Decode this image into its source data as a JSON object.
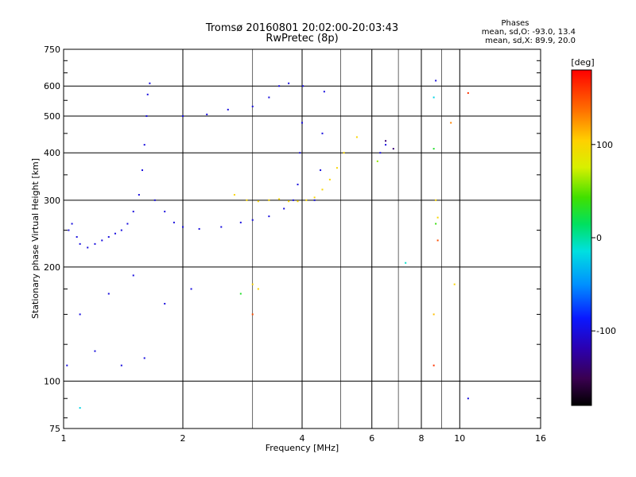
{
  "chart_data": {
    "type": "scatter",
    "title": "Tromsø 20160801 20:02:00-20:03:43",
    "subtitle": "RwPretec (8p)",
    "xlabel": "Frequency [MHz]",
    "ylabel": "Stationary phase Virtual Height [km]",
    "x_scale": "log",
    "y_scale": "log",
    "xlim": [
      1,
      16
    ],
    "ylim": [
      75,
      750
    ],
    "x_ticks": [
      1,
      2,
      4,
      6,
      8,
      10,
      16
    ],
    "x_tick_labels": [
      "1",
      "2",
      "4",
      "6",
      "8",
      "10",
      "16"
    ],
    "y_ticks": [
      75,
      100,
      200,
      300,
      400,
      500,
      600,
      750
    ],
    "y_tick_labels": [
      "75",
      "100",
      "200",
      "300",
      "400",
      "500",
      "600",
      "750"
    ],
    "grid": true,
    "stats_header": "Phases",
    "stats_lines": [
      "mean, sd,O: -93.0, 13.4",
      "mean, sd,X:  89.9, 20.0"
    ],
    "colorbar": {
      "label": "[deg]",
      "range": [
        -180,
        180
      ],
      "ticks": [
        100,
        0,
        -100
      ],
      "tick_labels": [
        "100",
        "0",
        "-100"
      ]
    },
    "series": [
      {
        "points": [
          {
            "x": 1.02,
            "y": 110,
            "phase": -100
          },
          {
            "x": 1.03,
            "y": 250,
            "phase": -100
          },
          {
            "x": 1.05,
            "y": 260,
            "phase": -100
          },
          {
            "x": 1.08,
            "y": 240,
            "phase": -100
          },
          {
            "x": 1.1,
            "y": 230,
            "phase": -100
          },
          {
            "x": 1.15,
            "y": 225,
            "phase": -100
          },
          {
            "x": 1.2,
            "y": 230,
            "phase": -100
          },
          {
            "x": 1.25,
            "y": 235,
            "phase": -100
          },
          {
            "x": 1.3,
            "y": 240,
            "phase": -100
          },
          {
            "x": 1.35,
            "y": 245,
            "phase": -100
          },
          {
            "x": 1.4,
            "y": 250,
            "phase": -100
          },
          {
            "x": 1.45,
            "y": 260,
            "phase": -100
          },
          {
            "x": 1.5,
            "y": 280,
            "phase": -100
          },
          {
            "x": 1.55,
            "y": 310,
            "phase": -100
          },
          {
            "x": 1.58,
            "y": 360,
            "phase": -100
          },
          {
            "x": 1.6,
            "y": 420,
            "phase": -100
          },
          {
            "x": 1.62,
            "y": 500,
            "phase": -100
          },
          {
            "x": 1.63,
            "y": 570,
            "phase": -100
          },
          {
            "x": 1.65,
            "y": 610,
            "phase": -100
          },
          {
            "x": 1.7,
            "y": 300,
            "phase": -100
          },
          {
            "x": 1.8,
            "y": 280,
            "phase": -100
          },
          {
            "x": 1.9,
            "y": 262,
            "phase": -100
          },
          {
            "x": 2.0,
            "y": 255,
            "phase": -100
          },
          {
            "x": 2.2,
            "y": 252,
            "phase": -100
          },
          {
            "x": 2.5,
            "y": 255,
            "phase": -100
          },
          {
            "x": 2.8,
            "y": 262,
            "phase": -100
          },
          {
            "x": 3.0,
            "y": 266,
            "phase": -100
          },
          {
            "x": 3.3,
            "y": 272,
            "phase": -100
          },
          {
            "x": 3.6,
            "y": 285,
            "phase": -100
          },
          {
            "x": 3.8,
            "y": 300,
            "phase": -100
          },
          {
            "x": 3.9,
            "y": 330,
            "phase": -100
          },
          {
            "x": 3.95,
            "y": 400,
            "phase": -100
          },
          {
            "x": 4.0,
            "y": 480,
            "phase": -100
          },
          {
            "x": 4.02,
            "y": 600,
            "phase": -100
          },
          {
            "x": 4.3,
            "y": 300,
            "phase": -100
          },
          {
            "x": 4.45,
            "y": 360,
            "phase": -100
          },
          {
            "x": 4.5,
            "y": 450,
            "phase": -100
          },
          {
            "x": 4.55,
            "y": 580,
            "phase": -100
          },
          {
            "x": 2.0,
            "y": 500,
            "phase": -100
          },
          {
            "x": 2.3,
            "y": 505,
            "phase": -100
          },
          {
            "x": 2.6,
            "y": 520,
            "phase": -100
          },
          {
            "x": 3.0,
            "y": 530,
            "phase": -100
          },
          {
            "x": 3.3,
            "y": 560,
            "phase": -100
          },
          {
            "x": 3.5,
            "y": 600,
            "phase": -100
          },
          {
            "x": 3.7,
            "y": 610,
            "phase": -100
          },
          {
            "x": 1.1,
            "y": 150,
            "phase": -100
          },
          {
            "x": 1.3,
            "y": 170,
            "phase": -100
          },
          {
            "x": 1.5,
            "y": 190,
            "phase": -100
          },
          {
            "x": 1.8,
            "y": 160,
            "phase": -100
          },
          {
            "x": 2.1,
            "y": 175,
            "phase": -100
          },
          {
            "x": 1.2,
            "y": 120,
            "phase": -100
          },
          {
            "x": 1.4,
            "y": 110,
            "phase": -100
          },
          {
            "x": 1.6,
            "y": 115,
            "phase": -100
          },
          {
            "x": 6.3,
            "y": 400,
            "phase": -100
          },
          {
            "x": 6.5,
            "y": 420,
            "phase": -100
          },
          {
            "x": 10.5,
            "y": 90,
            "phase": -100
          },
          {
            "x": 8.7,
            "y": 620,
            "phase": -100
          }
        ]
      },
      {
        "points": [
          {
            "x": 2.7,
            "y": 310,
            "phase": 100
          },
          {
            "x": 2.9,
            "y": 300,
            "phase": 100
          },
          {
            "x": 3.1,
            "y": 298,
            "phase": 100
          },
          {
            "x": 3.3,
            "y": 300,
            "phase": 100
          },
          {
            "x": 3.5,
            "y": 302,
            "phase": 100
          },
          {
            "x": 3.7,
            "y": 298,
            "phase": 100
          },
          {
            "x": 3.9,
            "y": 298,
            "phase": 100
          },
          {
            "x": 4.1,
            "y": 300,
            "phase": 100
          },
          {
            "x": 4.3,
            "y": 305,
            "phase": 100
          },
          {
            "x": 4.5,
            "y": 320,
            "phase": 100
          },
          {
            "x": 4.7,
            "y": 340,
            "phase": 100
          },
          {
            "x": 4.9,
            "y": 365,
            "phase": 100
          },
          {
            "x": 5.1,
            "y": 400,
            "phase": 100
          },
          {
            "x": 5.5,
            "y": 440,
            "phase": 100
          },
          {
            "x": 3.0,
            "y": 180,
            "phase": 100
          },
          {
            "x": 3.1,
            "y": 175,
            "phase": 100
          },
          {
            "x": 9.7,
            "y": 180,
            "phase": 100
          },
          {
            "x": 8.8,
            "y": 270,
            "phase": 100
          },
          {
            "x": 8.7,
            "y": 300,
            "phase": 100
          },
          {
            "x": 9.5,
            "y": 480,
            "phase": 130
          },
          {
            "x": 10.5,
            "y": 575,
            "phase": 160
          },
          {
            "x": 8.8,
            "y": 235,
            "phase": 150
          },
          {
            "x": 8.6,
            "y": 110,
            "phase": 160
          },
          {
            "x": 3.0,
            "y": 150,
            "phase": 150
          },
          {
            "x": 8.6,
            "y": 150,
            "phase": 110
          },
          {
            "x": 6.2,
            "y": 380,
            "phase": 60
          },
          {
            "x": 8.7,
            "y": 260,
            "phase": 40
          },
          {
            "x": 8.6,
            "y": 410,
            "phase": 30
          },
          {
            "x": 2.8,
            "y": 170,
            "phase": 30
          },
          {
            "x": 7.3,
            "y": 205,
            "phase": -10
          },
          {
            "x": 8.6,
            "y": 560,
            "phase": -20
          },
          {
            "x": 1.1,
            "y": 85,
            "phase": -20
          },
          {
            "x": 6.5,
            "y": 430,
            "phase": -140
          },
          {
            "x": 6.8,
            "y": 410,
            "phase": -140
          }
        ]
      }
    ]
  }
}
